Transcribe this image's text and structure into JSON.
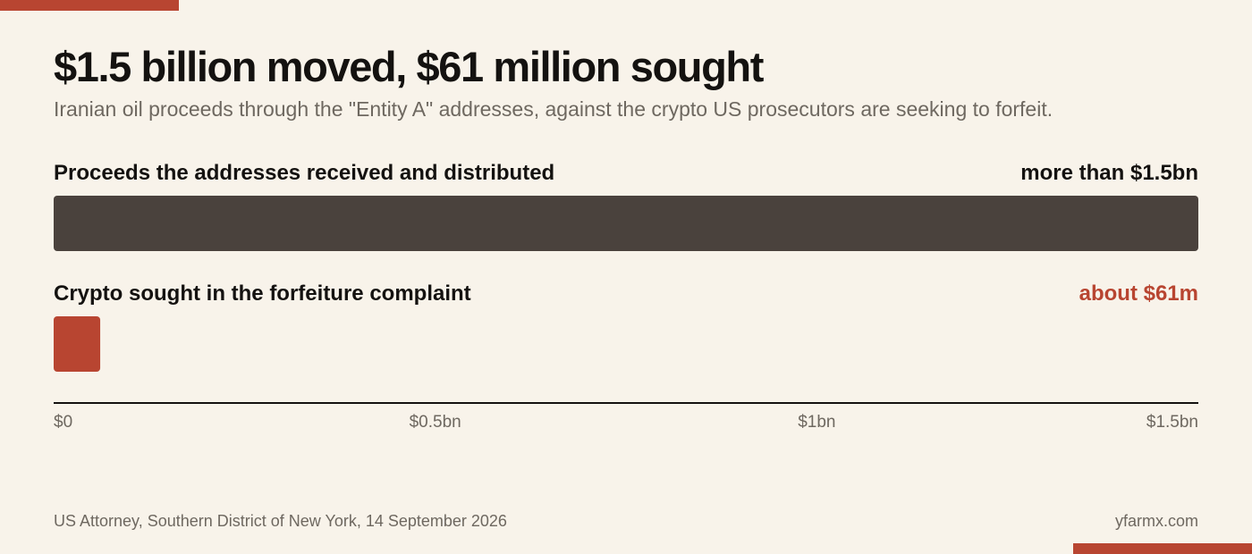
{
  "header": {
    "title": "$1.5 billion moved, $61 million sought",
    "subtitle": "Iranian oil proceeds through the \"Entity A\" addresses, against the crypto US prosecutors are seeking to forfeit."
  },
  "colors": {
    "accent": "#b84531",
    "bar_dark": "#4a423d",
    "background": "#f8f3ea",
    "text": "#141210",
    "muted": "#6e6860"
  },
  "chart_data": {
    "type": "bar",
    "orientation": "horizontal",
    "unit": "US dollars",
    "xlim": [
      0,
      1500000000
    ],
    "bars": [
      {
        "label": "Proceeds the addresses received and distributed",
        "value": 1500000000,
        "value_label": "more than $1.5bn",
        "color": "#4a423d"
      },
      {
        "label": "Crypto sought in the forfeiture complaint",
        "value": 61000000,
        "value_label": "about $61m",
        "color": "#b84531"
      }
    ],
    "ticks": [
      {
        "value": 0,
        "label": "$0"
      },
      {
        "value": 500000000,
        "label": "$0.5bn"
      },
      {
        "value": 1000000000,
        "label": "$1bn"
      },
      {
        "value": 1500000000,
        "label": "$1.5bn"
      }
    ]
  },
  "footer": {
    "source": "US Attorney, Southern District of New York, 14 September 2026",
    "site": "yfarmx.com"
  }
}
